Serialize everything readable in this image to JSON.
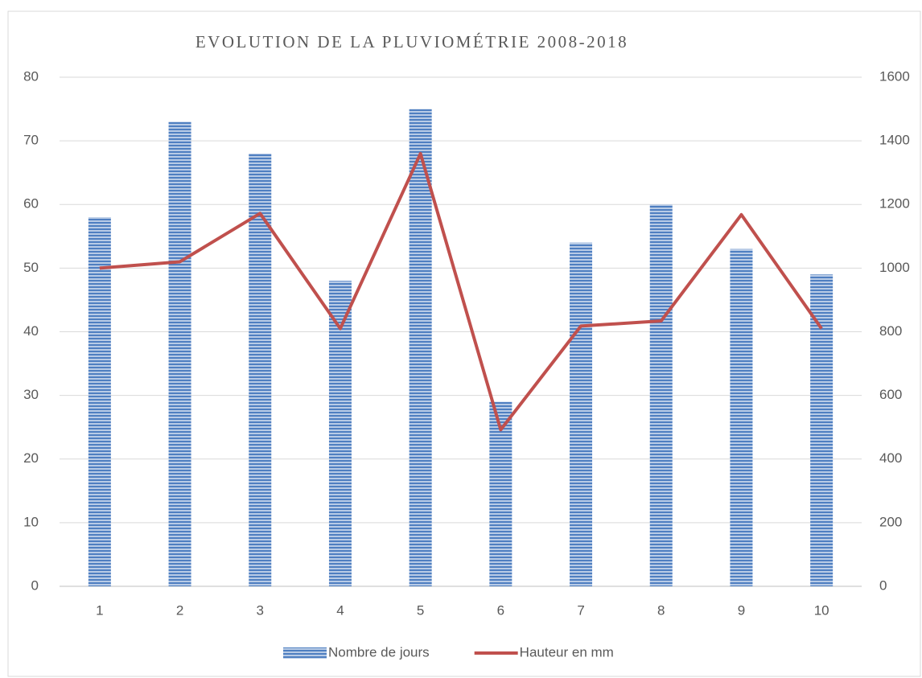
{
  "chart_data": {
    "type": "bar",
    "title": "EVOLUTION DE LA PLUVIOMÉTRIE 2008-2018",
    "categories": [
      1,
      2,
      3,
      4,
      5,
      6,
      7,
      8,
      9,
      10
    ],
    "series": [
      {
        "name": "Nombre de jours",
        "type": "bar",
        "color": "#4f7fc1",
        "values": [
          58,
          73,
          68,
          48,
          75,
          29,
          54,
          60,
          53,
          49
        ]
      },
      {
        "name": "Hauteur en mm",
        "type": "line",
        "axis": "y2",
        "color": "#c0504d",
        "values": [
          1000,
          1020,
          1172,
          810,
          1360,
          492,
          818,
          834,
          1168,
          810
        ]
      }
    ],
    "ylim": [
      0,
      80
    ],
    "yticks": [
      0,
      10,
      20,
      30,
      40,
      50,
      60,
      70,
      80
    ],
    "y2lim": [
      0,
      1600
    ],
    "y2ticks": [
      0,
      200,
      400,
      600,
      800,
      1000,
      1200,
      1400,
      1600
    ],
    "grid": true,
    "legend": "bottom"
  }
}
